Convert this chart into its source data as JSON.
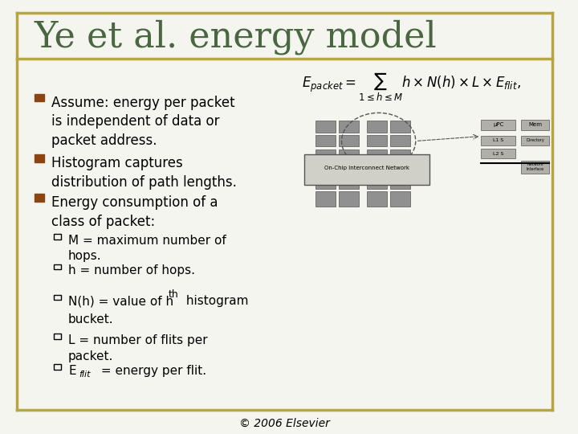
{
  "title": "Ye et al. energy model",
  "title_color": "#4a6741",
  "title_fontsize": 32,
  "background_color": "#f5f5f0",
  "border_color": "#b5a642",
  "bullet_color": "#8b4513",
  "bullet1": "Assume: energy per packet\nis independent of data or\npacket address.",
  "bullet2": "Histogram captures\ndistribution of path lengths.",
  "bullet3": "Energy consumption of a\nclass of packet:",
  "subbullets": [
    "M = maximum number of\nhops.",
    "h = number of hops.",
    "N(h) = value of hᵗʰ histogram\nbucket.",
    "L = number of flits per\npacket.",
    "E₟ₗᵢₜ = energy per flit."
  ],
  "footer": "© 2006 Elsevier",
  "text_fontsize": 12,
  "sub_fontsize": 11
}
